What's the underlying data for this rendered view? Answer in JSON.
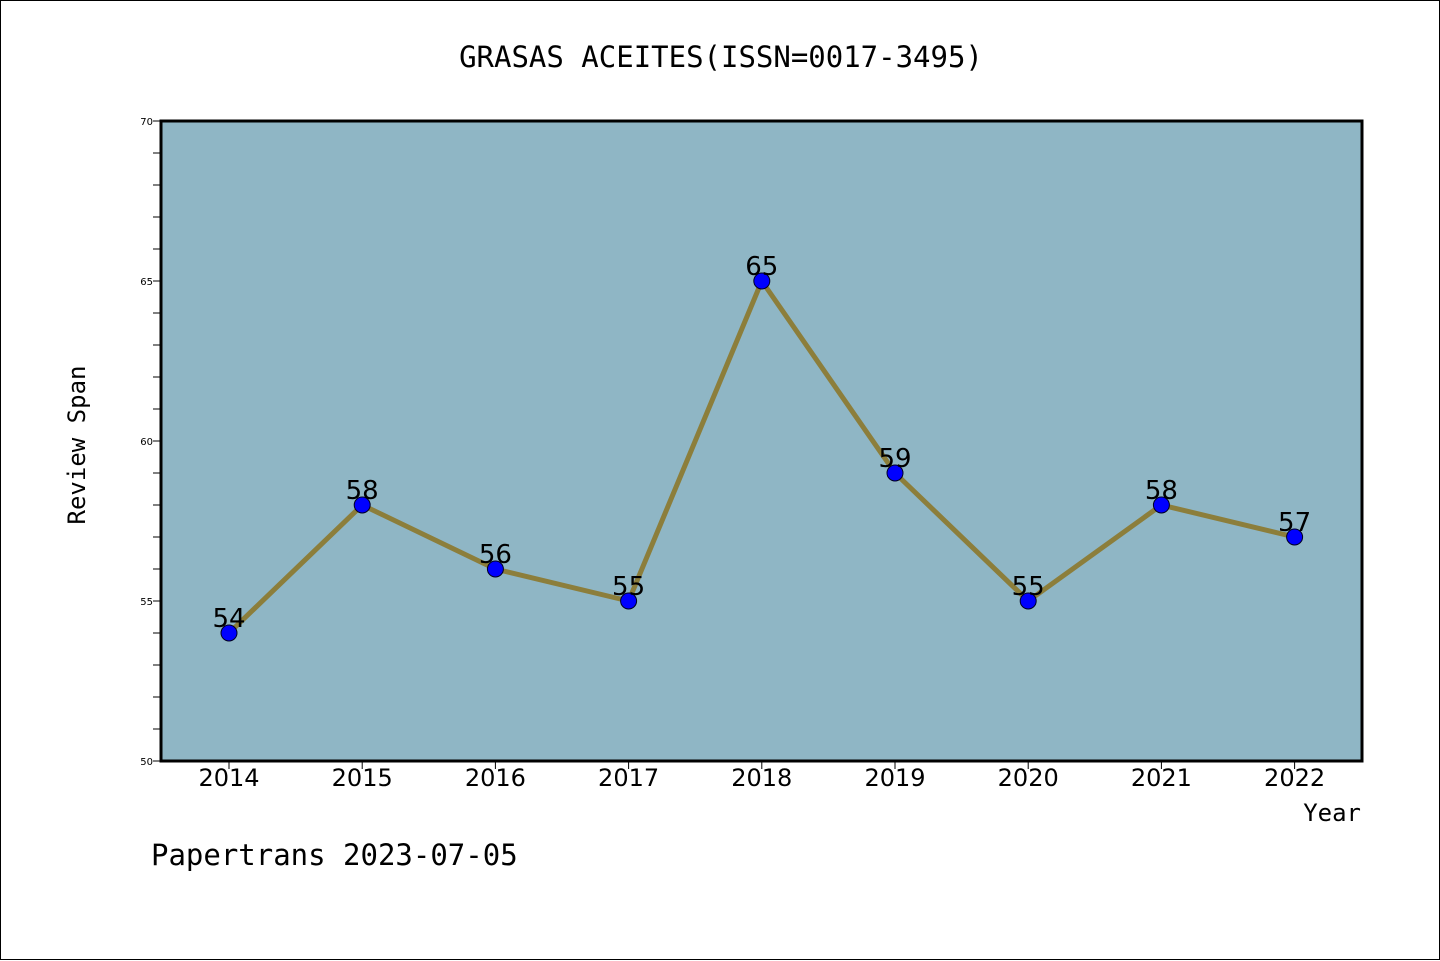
{
  "chart_data": {
    "type": "line",
    "title": "GRASAS ACEITES(ISSN=0017-3495)",
    "xlabel": "Year",
    "ylabel": "Review Span",
    "categories": [
      "2014",
      "2015",
      "2016",
      "2017",
      "2018",
      "2019",
      "2020",
      "2021",
      "2022"
    ],
    "values": [
      54,
      58,
      56,
      55,
      65,
      59,
      55,
      58,
      57
    ],
    "data_labels": [
      "54",
      "58",
      "56",
      "55",
      "65",
      "59",
      "55",
      "58",
      "57"
    ],
    "ylim": [
      50,
      70
    ],
    "yticks": [
      "50",
      "55",
      "60",
      "65",
      "70"
    ],
    "grid": false,
    "legend": "none"
  },
  "footer": {
    "text": "Papertrans 2023-07-05"
  },
  "colors": {
    "plot_background": "#8fb6c5",
    "line": "#8c7e3b",
    "marker": "#0000ff",
    "axis": "#000000"
  }
}
